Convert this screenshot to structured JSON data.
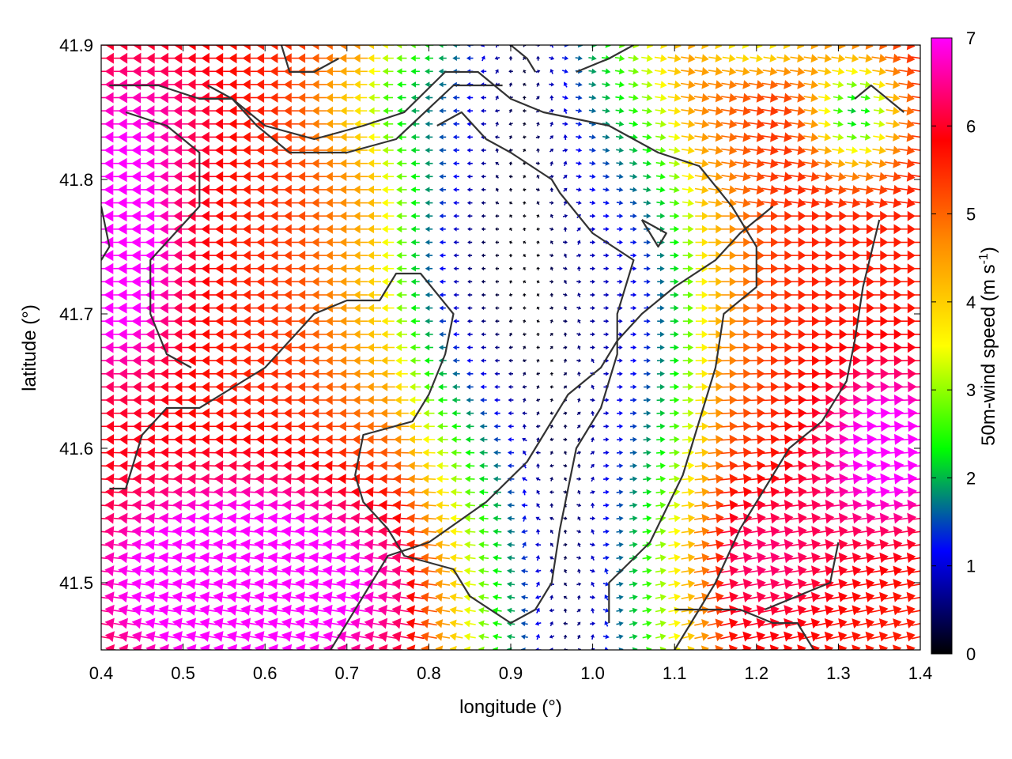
{
  "chart_data": {
    "type": "vector-field",
    "xlabel": "longitude (°)",
    "ylabel": "latitude (°)",
    "xlim": [
      0.4,
      1.4
    ],
    "ylim": [
      41.45,
      41.9
    ],
    "x_ticks": [
      "0.4",
      "0.5",
      "0.6",
      "0.7",
      "0.8",
      "0.9",
      "1.0",
      "1.1",
      "1.2",
      "1.3",
      "1.4"
    ],
    "x_tick_values": [
      0.4,
      0.5,
      0.6,
      0.7,
      0.8,
      0.9,
      1.0,
      1.1,
      1.2,
      1.3,
      1.4
    ],
    "y_ticks": [
      "41.5",
      "41.6",
      "41.7",
      "41.8",
      "41.9"
    ],
    "y_tick_values": [
      41.5,
      41.6,
      41.7,
      41.8,
      41.9
    ],
    "colorbar": {
      "label_prefix": "50m-wind speed (m s",
      "label_exponent": "-1",
      "label_suffix": ")",
      "range": [
        0,
        7
      ],
      "ticks": [
        "0",
        "1",
        "2",
        "3",
        "4",
        "5",
        "6",
        "7"
      ],
      "tick_values": [
        0,
        1,
        2,
        3,
        4,
        5,
        6,
        7
      ],
      "colors": [
        "#000000",
        "#0000ff",
        "#00ff00",
        "#ffff00",
        "#ff8c00",
        "#ff0000",
        "#ff00ff"
      ]
    },
    "contour_color": "#333333",
    "grid": false,
    "legend": "none",
    "features": {
      "calm_channel_lon": [
        0.93,
        0.96,
        0.97
      ],
      "calm_channel_lat": [
        41.8,
        41.6,
        41.47
      ],
      "strong_flow_regions": [
        "southwest",
        "west",
        "east"
      ]
    }
  }
}
